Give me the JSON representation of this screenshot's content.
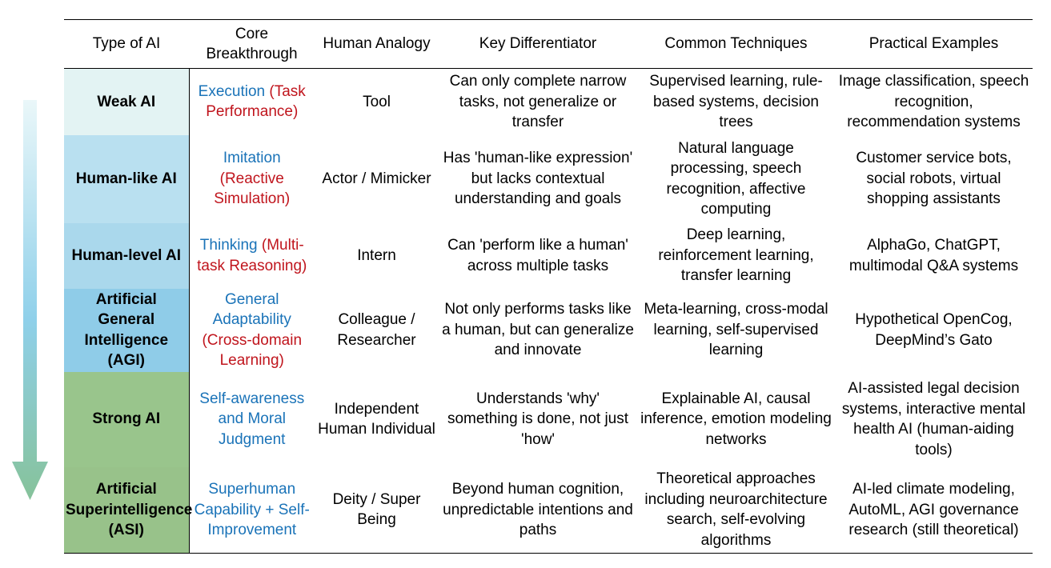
{
  "headers": {
    "type": "Type of AI",
    "core": "Core Breakthrough",
    "analogy": "Human Analogy",
    "differentiator": "Key Differentiator",
    "techniques": "Common Techniques",
    "examples": "Practical Examples"
  },
  "colors": {
    "blue_text": "#1f78c1",
    "red_text": "#c0151d",
    "row_weak": "#e3f3f3",
    "row_humanlike": "#b9e0f0",
    "row_humanlevel": "#aad8ec",
    "row_agi": "#8fcce8",
    "row_strong": "#99c58c",
    "row_asi": "#98c28a"
  },
  "rows": [
    {
      "type": "Weak AI",
      "core_main": "Execution",
      "core_detail": "(Task Performance)",
      "analogy": "Tool",
      "differentiator": "Can only complete narrow tasks, not generalize or transfer",
      "techniques": "Supervised learning, rule-based systems, decision trees",
      "examples": "Image classification, speech recognition, recommendation systems"
    },
    {
      "type": "Human-like AI",
      "core_main": "Imitation",
      "core_detail": "(Reactive Simulation)",
      "analogy": "Actor / Mimicker",
      "differentiator": "Has 'human-like expression' but lacks contextual understanding and goals",
      "techniques": "Natural language processing, speech recognition, affective computing",
      "examples": "Customer service bots, social robots, virtual shopping assistants"
    },
    {
      "type": "Human-level AI",
      "core_main": "Thinking",
      "core_detail": "(Multi-task Reasoning)",
      "analogy": "Intern",
      "differentiator": "Can 'perform like a human' across multiple tasks",
      "techniques": "Deep learning, reinforcement learning, transfer learning",
      "examples": "AlphaGo, ChatGPT, multimodal Q&A systems"
    },
    {
      "type": "Artificial General Intelligence (AGI)",
      "core_main": "General Adaptability",
      "core_detail": "(Cross-domain Learning)",
      "analogy": "Colleague / Researcher",
      "differentiator": "Not only performs tasks like a human, but can generalize and innovate",
      "techniques": "Meta-learning, cross-modal learning, self-supervised learning",
      "examples": "Hypothetical OpenCog, DeepMind’s Gato"
    },
    {
      "type": "Strong AI",
      "core_main": "Self-awareness and Moral Judgment",
      "core_detail": "",
      "analogy": "Independent Human Individual",
      "differentiator": "Understands 'why' something is done, not just 'how'",
      "techniques": "Explainable AI, causal inference, emotion modeling networks",
      "examples": "AI-assisted legal decision systems, interactive mental health AI (human-aiding tools)"
    },
    {
      "type": "Artificial Superintelligence (ASI)",
      "core_main": "Superhuman Capability + Self-Improvement",
      "core_detail": "",
      "analogy": "Deity / Super Being",
      "differentiator": "Beyond human cognition, unpredictable intentions and paths",
      "techniques": "Theoretical approaches including neuroarchitecture search, self-evolving algorithms",
      "examples": "AI-led climate modeling, AutoML, AGI governance research (still theoretical)"
    }
  ]
}
